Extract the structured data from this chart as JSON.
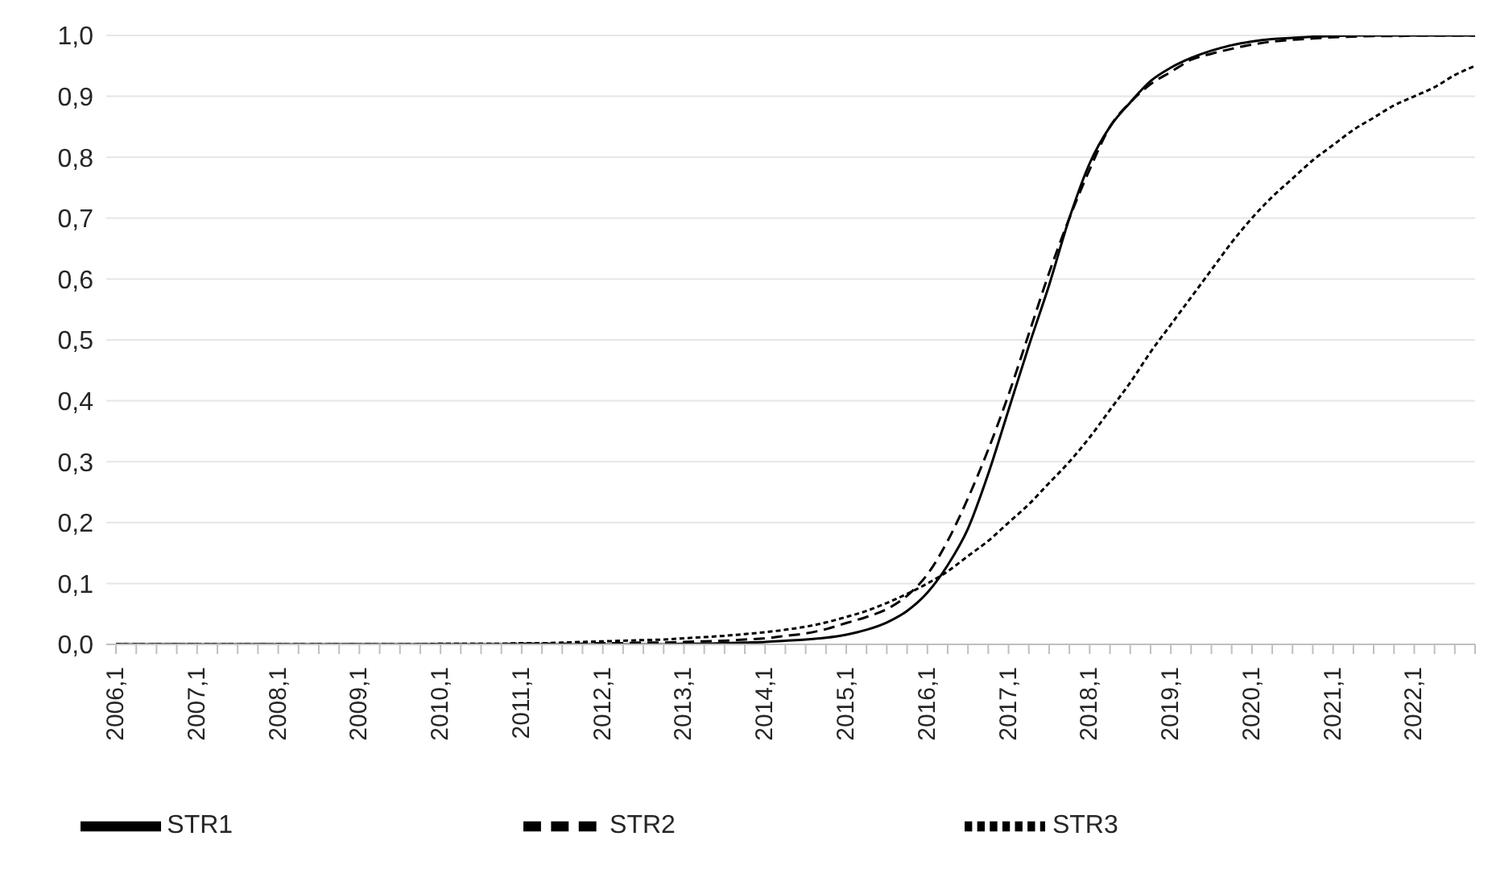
{
  "chart_data": {
    "type": "line",
    "categories": [
      "2006,1",
      null,
      null,
      null,
      "2007,1",
      null,
      null,
      null,
      "2008,1",
      null,
      null,
      null,
      "2009,1",
      null,
      null,
      null,
      "2010,1",
      null,
      null,
      null,
      "2011,1",
      null,
      null,
      null,
      "2012,1",
      null,
      null,
      null,
      "2013,1",
      null,
      null,
      null,
      "2014,1",
      null,
      null,
      null,
      "2015,1",
      null,
      null,
      null,
      "2016,1",
      null,
      null,
      null,
      "2017,1",
      null,
      null,
      null,
      "2018,1",
      null,
      null,
      null,
      "2019,1",
      null,
      null,
      null,
      "2020,1",
      null,
      null,
      null,
      "2021,1",
      null,
      null,
      null,
      "2022,1",
      null,
      null,
      null
    ],
    "series": [
      {
        "name": "STR1",
        "color": "#000000",
        "line_style": "solid",
        "values": [
          0,
          0,
          0,
          0,
          0,
          0,
          0,
          0,
          0,
          0,
          0,
          0,
          0,
          0,
          0,
          0,
          0,
          0,
          0,
          0,
          0,
          0,
          0,
          0,
          0,
          0,
          0,
          0,
          0.001,
          0.001,
          0.002,
          0.003,
          0.004,
          0.006,
          0.008,
          0.011,
          0.016,
          0.024,
          0.036,
          0.055,
          0.085,
          0.13,
          0.19,
          0.28,
          0.385,
          0.49,
          0.59,
          0.7,
          0.79,
          0.85,
          0.89,
          0.925,
          0.947,
          0.963,
          0.975,
          0.984,
          0.99,
          0.994,
          0.996,
          0.998,
          0.999,
          1,
          1,
          1,
          1,
          1,
          1,
          1
        ]
      },
      {
        "name": "STR2",
        "color": "#000000",
        "line_style": "dashed",
        "values": [
          0,
          0,
          0,
          0,
          0,
          0,
          0,
          0,
          0,
          0,
          0,
          0,
          0,
          0,
          0,
          0,
          0,
          0,
          0,
          0,
          0.001,
          0.001,
          0.001,
          0.001,
          0.002,
          0.002,
          0.003,
          0.003,
          0.004,
          0.005,
          0.006,
          0.008,
          0.01,
          0.014,
          0.018,
          0.025,
          0.035,
          0.045,
          0.058,
          0.08,
          0.115,
          0.17,
          0.24,
          0.32,
          0.41,
          0.51,
          0.61,
          0.7,
          0.78,
          0.85,
          0.89,
          0.92,
          0.94,
          0.96,
          0.97,
          0.978,
          0.985,
          0.99,
          0.993,
          0.995,
          0.997,
          0.998,
          0.999,
          0.999,
          1,
          1,
          1,
          1
        ]
      },
      {
        "name": "STR3",
        "color": "#000000",
        "line_style": "dotted",
        "values": [
          0,
          0,
          0,
          0,
          0,
          0,
          0,
          0,
          0,
          0,
          0,
          0,
          0,
          0,
          0,
          0,
          0.001,
          0.001,
          0.001,
          0.001,
          0.002,
          0.002,
          0.003,
          0.004,
          0.005,
          0.006,
          0.007,
          0.008,
          0.01,
          0.012,
          0.014,
          0.017,
          0.02,
          0.024,
          0.029,
          0.036,
          0.045,
          0.055,
          0.068,
          0.083,
          0.1,
          0.12,
          0.145,
          0.17,
          0.2,
          0.23,
          0.265,
          0.3,
          0.34,
          0.385,
          0.43,
          0.48,
          0.525,
          0.57,
          0.615,
          0.66,
          0.7,
          0.735,
          0.765,
          0.795,
          0.82,
          0.845,
          0.865,
          0.885,
          0.9,
          0.915,
          0.935,
          0.95
        ]
      }
    ],
    "ylim": [
      0,
      1
    ],
    "yticks": [
      {
        "value": 0,
        "label": "0,0"
      },
      {
        "value": 0.1,
        "label": "0,1"
      },
      {
        "value": 0.2,
        "label": "0,2"
      },
      {
        "value": 0.3,
        "label": "0,3"
      },
      {
        "value": 0.4,
        "label": "0,4"
      },
      {
        "value": 0.5,
        "label": "0,5"
      },
      {
        "value": 0.6,
        "label": "0,6"
      },
      {
        "value": 0.7,
        "label": "0,7"
      },
      {
        "value": 0.8,
        "label": "0,8"
      },
      {
        "value": 0.9,
        "label": "0,9"
      },
      {
        "value": 1,
        "label": "1,0"
      }
    ],
    "grid": "y",
    "legend": "bottom"
  }
}
